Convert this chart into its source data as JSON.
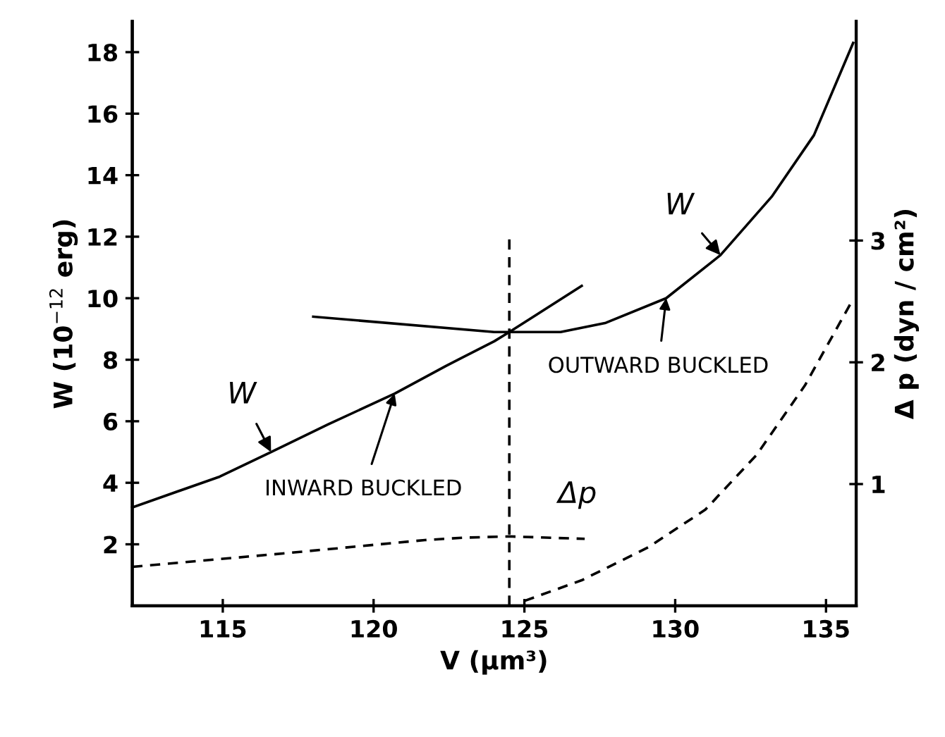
{
  "chart_data": {
    "type": "line",
    "xlabel": "V (μm³)",
    "ylabel": "W (10$^{−12}$ erg)",
    "y2label": "Δ p (dyn / cm²)",
    "xlim": [
      112,
      136
    ],
    "xticks": [
      115,
      120,
      125,
      130,
      135
    ],
    "ylim": [
      0,
      19
    ],
    "yticks": [
      2,
      4,
      6,
      8,
      10,
      12,
      14,
      16,
      18
    ],
    "y2lim": [
      0,
      4.8
    ],
    "y2ticks": [
      1,
      2,
      3
    ],
    "grid": false,
    "legend": false,
    "marker": "none",
    "series": [
      {
        "color": "#000000",
        "line_style": "solid",
        "x": [
          112,
          114.9,
          116.6,
          118.5,
          120.7,
          122.4,
          124.0,
          124.5,
          126.9
        ],
        "values": [
          3.2,
          4.2,
          5.0,
          5.9,
          6.9,
          7.8,
          8.6,
          8.9,
          10.4
        ]
      },
      {
        "color": "#000000",
        "line_style": "solid",
        "x": [
          118.0,
          124.0,
          124.5,
          126.2,
          127.7,
          129.7,
          131.5,
          133.2,
          134.6,
          135.9
        ],
        "values": [
          9.4,
          8.9,
          8.9,
          8.9,
          9.2,
          10.0,
          11.4,
          13.3,
          15.3,
          18.3
        ]
      },
      {
        "color": "#000000",
        "line_style": "dashed",
        "axis": "y2",
        "x": [
          112,
          117.0,
          121.7,
          123.0,
          124.5,
          127.0
        ],
        "values": [
          0.32,
          0.43,
          0.54,
          0.56,
          0.57,
          0.55
        ]
      },
      {
        "color": "#000000",
        "line_style": "dashed",
        "axis": "y2",
        "x": [
          125.0,
          126.9,
          129.1,
          131.0,
          132.7,
          134.3,
          135.9
        ],
        "values": [
          0.04,
          0.21,
          0.48,
          0.79,
          1.24,
          1.81,
          2.52
        ]
      },
      {
        "color": "#000000",
        "line_style": "dashed",
        "x": [
          124.5,
          124.5
        ],
        "values": [
          0,
          12.0
        ]
      }
    ],
    "annotations": [
      {
        "text": "W",
        "x": 116.6,
        "y": 5.0
      },
      {
        "text": "W",
        "x": 131.5,
        "y": 11.4
      },
      {
        "text": "INWARD BUCKLED",
        "x": 120.7,
        "y": 6.9
      },
      {
        "text": "OUTWARD BUCKLED",
        "x": 129.7,
        "y": 10.0
      },
      "Δp"
    ]
  }
}
